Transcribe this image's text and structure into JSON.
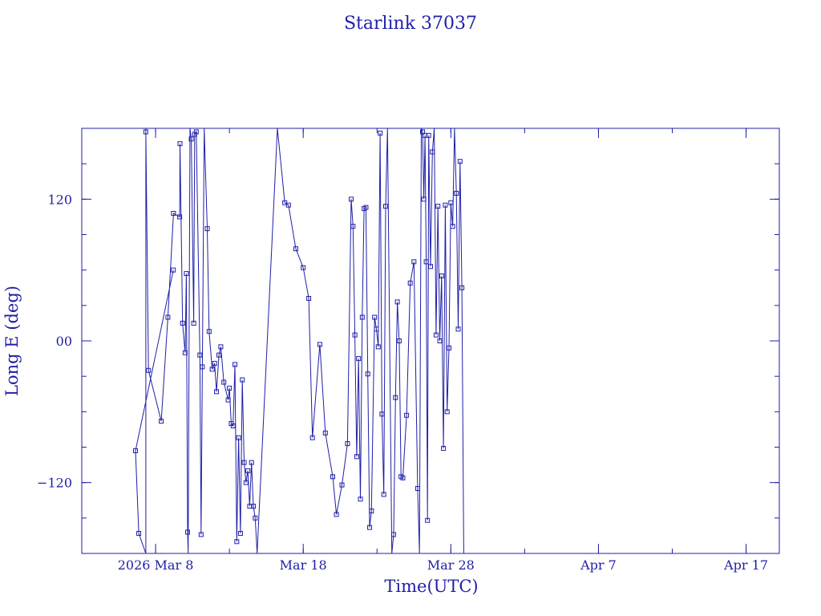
{
  "chart_data": {
    "type": "line",
    "title": "Starlink 37037",
    "xlabel": "Time(UTC)",
    "ylabel": "Long E (deg)",
    "color": "#1f1fa8",
    "x_unit": "date",
    "xlim": [
      "2026-03-03",
      "2026-04-19T06:00"
    ],
    "ylim": [
      -180,
      180
    ],
    "x_ticks": [
      {
        "date": "2026-03-08",
        "label": "2026 Mar  8"
      },
      {
        "date": "2026-03-18",
        "label": "Mar 18"
      },
      {
        "date": "2026-03-28",
        "label": "Mar 28"
      },
      {
        "date": "2026-04-07",
        "label": "Apr  7"
      },
      {
        "date": "2026-04-17",
        "label": "Apr 17"
      }
    ],
    "y_ticks": [
      {
        "value": 120,
        "label": "120"
      },
      {
        "value": 0,
        "label": "00"
      },
      {
        "value": -120,
        "label": "−120"
      }
    ],
    "points": [
      [
        "2026-03-09T04:49",
        60
      ],
      [
        "2026-03-06T15:16",
        -93
      ],
      [
        "2026-03-06T20:38",
        -163
      ],
      [
        "2026-03-07T08:05",
        -180
      ],
      [
        "2026-03-07T08:05",
        180
      ],
      [
        "2026-03-07T08:05",
        177
      ],
      [
        "2026-03-07T12:25",
        -25
      ],
      [
        "2026-03-08T09:08",
        -68
      ],
      [
        "2026-03-08T20:00",
        20
      ],
      [
        "2026-03-09T05:05",
        108
      ],
      [
        "2026-03-09T15:08",
        105
      ],
      [
        "2026-03-09T15:40",
        167
      ],
      [
        "2026-03-09T19:50",
        15
      ],
      [
        "2026-03-10T00:00",
        -10
      ],
      [
        "2026-03-10T02:00",
        57
      ],
      [
        "2026-03-10T04:00",
        -162
      ],
      [
        "2026-03-10T05:00",
        -180
      ],
      [
        "2026-03-10T08:00",
        180
      ],
      [
        "2026-03-10T10:00",
        171
      ],
      [
        "2026-03-10T14:00",
        15
      ],
      [
        "2026-03-10T15:30",
        175
      ],
      [
        "2026-03-10T18:10",
        177
      ],
      [
        "2026-03-11T00:00",
        -12
      ],
      [
        "2026-03-11T02:00",
        -164
      ],
      [
        "2026-03-11T04:00",
        -22
      ],
      [
        "2026-03-11T07:00",
        180
      ],
      [
        "2026-03-11T12:00",
        95
      ],
      [
        "2026-03-11T15:00",
        8
      ],
      [
        "2026-03-11T20:00",
        -24
      ],
      [
        "2026-03-12T00:00",
        -19
      ],
      [
        "2026-03-12T03:00",
        -43
      ],
      [
        "2026-03-12T07:00",
        -12
      ],
      [
        "2026-03-12T10:00",
        -5
      ],
      [
        "2026-03-12T15:00",
        -35
      ],
      [
        "2026-03-12T22:00",
        -50
      ],
      [
        "2026-03-13T00:00",
        -40
      ],
      [
        "2026-03-13T03:00",
        -70
      ],
      [
        "2026-03-13T06:00",
        -72
      ],
      [
        "2026-03-13T09:00",
        -20
      ],
      [
        "2026-03-13T12:00",
        -170
      ],
      [
        "2026-03-13T15:00",
        -82
      ],
      [
        "2026-03-13T18:00",
        -163
      ],
      [
        "2026-03-13T21:00",
        -33
      ],
      [
        "2026-03-14T00:00",
        -103
      ],
      [
        "2026-03-14T03:00",
        -120
      ],
      [
        "2026-03-14T06:00",
        -110
      ],
      [
        "2026-03-14T09:00",
        -140
      ],
      [
        "2026-03-14T12:00",
        -103
      ],
      [
        "2026-03-14T15:00",
        -140
      ],
      [
        "2026-03-14T18:00",
        -150
      ],
      [
        "2026-03-14T21:00",
        -180
      ],
      [
        "2026-03-16T06:00",
        180
      ],
      [
        "2026-03-16T18:00",
        117
      ],
      [
        "2026-03-17T00:00",
        115
      ],
      [
        "2026-03-17T12:00",
        78
      ],
      [
        "2026-03-18T00:00",
        62
      ],
      [
        "2026-03-18T09:00",
        36
      ],
      [
        "2026-03-18T15:00",
        -82
      ],
      [
        "2026-03-19T03:00",
        -3
      ],
      [
        "2026-03-19T12:00",
        -78
      ],
      [
        "2026-03-20T00:00",
        -115
      ],
      [
        "2026-03-20T06:00",
        -147
      ],
      [
        "2026-03-20T15:00",
        -122
      ],
      [
        "2026-03-21T00:00",
        -87
      ],
      [
        "2026-03-21T06:00",
        120
      ],
      [
        "2026-03-21T09:00",
        97
      ],
      [
        "2026-03-21T12:00",
        5
      ],
      [
        "2026-03-21T15:00",
        -98
      ],
      [
        "2026-03-21T18:00",
        -15
      ],
      [
        "2026-03-21T21:00",
        -134
      ],
      [
        "2026-03-22T00:00",
        20
      ],
      [
        "2026-03-22T03:00",
        112
      ],
      [
        "2026-03-22T06:00",
        113
      ],
      [
        "2026-03-22T09:00",
        -28
      ],
      [
        "2026-03-22T12:00",
        -158
      ],
      [
        "2026-03-22T15:00",
        -144
      ],
      [
        "2026-03-22T20:00",
        20
      ],
      [
        "2026-03-22T23:00",
        10
      ],
      [
        "2026-03-23T02:00",
        -5
      ],
      [
        "2026-03-23T05:00",
        176
      ],
      [
        "2026-03-23T08:00",
        -62
      ],
      [
        "2026-03-23T11:00",
        -130
      ],
      [
        "2026-03-23T14:00",
        114
      ],
      [
        "2026-03-23T17:00",
        180
      ],
      [
        "2026-03-24T00:00",
        -180
      ],
      [
        "2026-03-24T03:00",
        -164
      ],
      [
        "2026-03-24T06:00",
        -48
      ],
      [
        "2026-03-24T09:00",
        33
      ],
      [
        "2026-03-24T12:00",
        0
      ],
      [
        "2026-03-24T15:00",
        -115
      ],
      [
        "2026-03-24T18:00",
        -116
      ],
      [
        "2026-03-25T00:00",
        -63
      ],
      [
        "2026-03-25T06:00",
        49
      ],
      [
        "2026-03-25T12:00",
        67
      ],
      [
        "2026-03-25T18:00",
        -125
      ],
      [
        "2026-03-25T21:00",
        -180
      ],
      [
        "2026-03-26T00:00",
        180
      ],
      [
        "2026-03-26T02:00",
        177
      ],
      [
        "2026-03-26T04:00",
        120
      ],
      [
        "2026-03-26T06:00",
        174
      ],
      [
        "2026-03-26T08:00",
        67
      ],
      [
        "2026-03-26T10:00",
        -152
      ],
      [
        "2026-03-26T12:00",
        174
      ],
      [
        "2026-03-26T15:00",
        63
      ],
      [
        "2026-03-26T18:00",
        160
      ],
      [
        "2026-03-26T21:00",
        180
      ],
      [
        "2026-03-27T00:00",
        5
      ],
      [
        "2026-03-27T03:00",
        114
      ],
      [
        "2026-03-27T06:00",
        0
      ],
      [
        "2026-03-27T09:00",
        55
      ],
      [
        "2026-03-27T12:00",
        -91
      ],
      [
        "2026-03-27T15:00",
        115
      ],
      [
        "2026-03-27T18:00",
        -60
      ],
      [
        "2026-03-27T21:00",
        -6
      ],
      [
        "2026-03-28T00:00",
        117
      ],
      [
        "2026-03-28T03:00",
        97
      ],
      [
        "2026-03-28T06:00",
        180
      ],
      [
        "2026-03-28T09:00",
        125
      ],
      [
        "2026-03-28T12:00",
        10
      ],
      [
        "2026-03-28T15:00",
        152
      ],
      [
        "2026-03-28T18:00",
        45
      ],
      [
        "2026-03-28T21:00",
        -180
      ]
    ]
  }
}
